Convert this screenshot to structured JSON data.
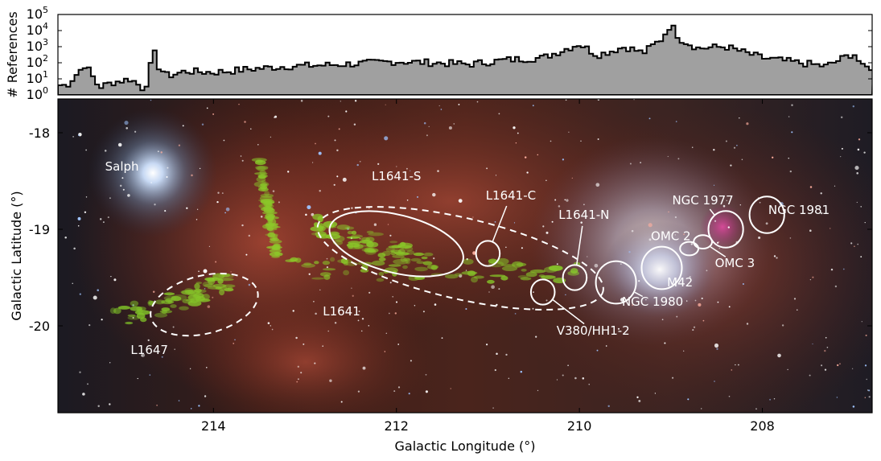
{
  "chart_data": [
    {
      "type": "area",
      "panel": "top",
      "ylabel": "# References",
      "yscale": "log",
      "ylim": [
        1,
        100000
      ],
      "yticks": [
        "10^0",
        "10^1",
        "10^2",
        "10^3",
        "10^4",
        "10^5"
      ],
      "xlim": [
        215.7,
        206.8
      ],
      "fill_color": "#a0a0a0",
      "x": [
        215.6,
        215.4,
        215.25,
        215.1,
        214.9,
        214.75,
        214.65,
        214.6,
        214.5,
        214.3,
        214.0,
        213.6,
        213.2,
        212.8,
        212.4,
        212.0,
        211.6,
        211.2,
        210.8,
        210.4,
        210.0,
        209.8,
        209.5,
        209.3,
        209.1,
        209.0,
        208.9,
        208.7,
        208.4,
        208.0,
        207.6,
        207.3,
        207.0,
        206.9
      ],
      "values": [
        4,
        80,
        3,
        6,
        10,
        2,
        500,
        60,
        15,
        30,
        25,
        40,
        60,
        70,
        90,
        120,
        100,
        80,
        150,
        200,
        1500,
        300,
        1000,
        400,
        3000,
        25000,
        3000,
        800,
        1000,
        200,
        100,
        60,
        400,
        50
      ]
    },
    {
      "type": "image",
      "panel": "bottom",
      "xlabel": "Galactic Longitude (°)",
      "ylabel": "Galactic Latitude (°)",
      "xlim": [
        215.7,
        206.8
      ],
      "ylim": [
        -20.9,
        -17.65
      ],
      "xticks": [
        "214",
        "212",
        "210",
        "208"
      ],
      "yticks": [
        "-18",
        "-19",
        "-20"
      ],
      "annotations": [
        {
          "label": "Salph",
          "l": 215.0,
          "b": -18.35,
          "shape": "none"
        },
        {
          "label": "L1641-S",
          "l": 212.0,
          "b": -18.45,
          "shape": "ellipse",
          "cl": 212.0,
          "cb": -19.15,
          "rl": 0.75,
          "rb": 0.3,
          "rot": 14
        },
        {
          "label": "L1641-C",
          "l": 210.75,
          "b": -18.65,
          "shape": "circle",
          "cl": 211.0,
          "cb": -19.25,
          "rl": 0.13,
          "rb": 0.13,
          "rot": 0
        },
        {
          "label": "L1641-N",
          "l": 209.95,
          "b": -18.85,
          "shape": "circle",
          "cl": 210.05,
          "cb": -19.5,
          "rl": 0.13,
          "rb": 0.13,
          "rot": 0
        },
        {
          "label": "V380/HH1-2",
          "l": 209.85,
          "b": -20.05,
          "shape": "circle",
          "cl": 210.4,
          "cb": -19.65,
          "rl": 0.13,
          "rb": 0.13,
          "rot": 0
        },
        {
          "label": "NGC 1980",
          "l": 209.2,
          "b": -19.75,
          "shape": "circle",
          "cl": 209.6,
          "cb": -19.55,
          "rl": 0.22,
          "rb": 0.22,
          "rot": 0
        },
        {
          "label": "M42",
          "l": 208.9,
          "b": -19.55,
          "shape": "circle",
          "cl": 209.1,
          "cb": -19.4,
          "rl": 0.22,
          "rb": 0.22,
          "rot": 0
        },
        {
          "label": "OMC 2",
          "l": 209.0,
          "b": -19.07,
          "shape": "ellipse",
          "cl": 208.8,
          "cb": -19.2,
          "rl": 0.1,
          "rb": 0.07,
          "rot": 0
        },
        {
          "label": "OMC 3",
          "l": 208.3,
          "b": -19.35,
          "shape": "ellipse",
          "cl": 208.65,
          "cb": -19.13,
          "rl": 0.1,
          "rb": 0.07,
          "rot": 0
        },
        {
          "label": "NGC 1977",
          "l": 208.65,
          "b": -18.7,
          "shape": "circle",
          "cl": 208.4,
          "cb": -19.0,
          "rl": 0.19,
          "rb": 0.19,
          "rot": 0
        },
        {
          "label": "NGC 1981",
          "l": 207.6,
          "b": -18.8,
          "shape": "circle",
          "cl": 207.95,
          "cb": -18.85,
          "rl": 0.19,
          "rb": 0.19,
          "rot": 0
        },
        {
          "label": "L1641",
          "l": 212.6,
          "b": -19.85,
          "shape": "dashed-ellipse",
          "cl": 211.3,
          "cb": -19.3,
          "rl": 1.6,
          "rb": 0.42,
          "rot": 13
        },
        {
          "label": "L1647",
          "l": 214.7,
          "b": -20.25,
          "shape": "dashed-ellipse",
          "cl": 214.1,
          "cb": -19.78,
          "rl": 0.6,
          "rb": 0.3,
          "rot": -14
        }
      ]
    }
  ]
}
